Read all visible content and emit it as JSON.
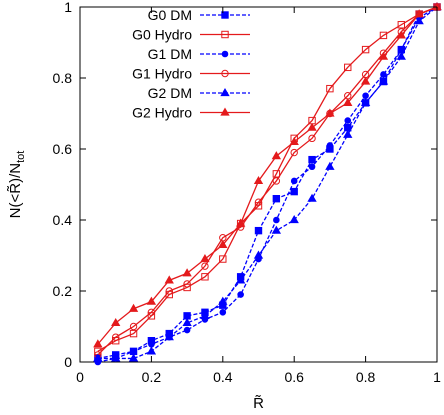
{
  "chart_data": {
    "type": "line",
    "title": "",
    "xlabel": "R̃",
    "ylabel_main": "N(<R̃)/N",
    "ylabel_sub": "tot",
    "xlim": [
      0,
      1
    ],
    "ylim": [
      0,
      1
    ],
    "xticks": [
      "0",
      "0.2",
      "0.4",
      "0.6",
      "0.8",
      "1"
    ],
    "yticks": [
      "0",
      "0.2",
      "0.4",
      "0.6",
      "0.8",
      "1"
    ],
    "xtick_values": [
      0,
      0.2,
      0.4,
      0.6,
      0.8,
      1
    ],
    "ytick_values": [
      0,
      0.2,
      0.4,
      0.6,
      0.8,
      1
    ],
    "grid": false,
    "legend_position": "top-left",
    "series": [
      {
        "name": "G0 DM",
        "color": "#0000ff",
        "dash": "dashed",
        "marker": "square-filled",
        "x": [
          0.05,
          0.1,
          0.15,
          0.2,
          0.25,
          0.3,
          0.35,
          0.4,
          0.45,
          0.5,
          0.55,
          0.6,
          0.65,
          0.7,
          0.75,
          0.8,
          0.85,
          0.9,
          0.95,
          1.0
        ],
        "y": [
          0.01,
          0.02,
          0.03,
          0.06,
          0.08,
          0.13,
          0.14,
          0.16,
          0.24,
          0.37,
          0.46,
          0.48,
          0.57,
          0.6,
          0.66,
          0.73,
          0.79,
          0.88,
          0.98,
          1.0
        ]
      },
      {
        "name": "G0 Hydro",
        "color": "#e41a1c",
        "dash": "solid",
        "marker": "square-open",
        "x": [
          0.05,
          0.1,
          0.15,
          0.2,
          0.25,
          0.3,
          0.35,
          0.4,
          0.45,
          0.5,
          0.55,
          0.6,
          0.65,
          0.7,
          0.75,
          0.8,
          0.85,
          0.9,
          0.95,
          1.0
        ],
        "y": [
          0.03,
          0.06,
          0.08,
          0.13,
          0.19,
          0.21,
          0.24,
          0.29,
          0.39,
          0.44,
          0.53,
          0.63,
          0.68,
          0.77,
          0.83,
          0.88,
          0.92,
          0.95,
          0.98,
          1.0
        ]
      },
      {
        "name": "G1 DM",
        "color": "#0000ff",
        "dash": "dashed",
        "marker": "circle-filled",
        "x": [
          0.05,
          0.1,
          0.15,
          0.2,
          0.25,
          0.3,
          0.35,
          0.4,
          0.45,
          0.5,
          0.55,
          0.6,
          0.65,
          0.7,
          0.75,
          0.8,
          0.85,
          0.9,
          0.95,
          1.0
        ],
        "y": [
          0.0,
          0.01,
          0.03,
          0.05,
          0.07,
          0.09,
          0.12,
          0.14,
          0.19,
          0.29,
          0.4,
          0.51,
          0.55,
          0.61,
          0.68,
          0.75,
          0.81,
          0.88,
          0.97,
          1.0
        ]
      },
      {
        "name": "G1 Hydro",
        "color": "#e41a1c",
        "dash": "solid",
        "marker": "circle-open",
        "x": [
          0.05,
          0.1,
          0.15,
          0.2,
          0.25,
          0.3,
          0.35,
          0.4,
          0.45,
          0.5,
          0.55,
          0.6,
          0.65,
          0.7,
          0.75,
          0.8,
          0.85,
          0.9,
          0.95,
          1.0
        ],
        "y": [
          0.02,
          0.07,
          0.1,
          0.14,
          0.2,
          0.22,
          0.27,
          0.35,
          0.38,
          0.45,
          0.51,
          0.59,
          0.63,
          0.7,
          0.75,
          0.81,
          0.87,
          0.93,
          0.98,
          1.0
        ]
      },
      {
        "name": "G2 DM",
        "color": "#0000ff",
        "dash": "dashed",
        "marker": "triangle-filled",
        "x": [
          0.05,
          0.1,
          0.15,
          0.2,
          0.25,
          0.3,
          0.35,
          0.4,
          0.45,
          0.5,
          0.55,
          0.6,
          0.65,
          0.7,
          0.75,
          0.8,
          0.85,
          0.9,
          0.95,
          1.0
        ],
        "y": [
          0.01,
          0.01,
          0.01,
          0.03,
          0.07,
          0.11,
          0.13,
          0.17,
          0.23,
          0.3,
          0.37,
          0.4,
          0.46,
          0.55,
          0.64,
          0.73,
          0.79,
          0.86,
          0.96,
          1.0
        ]
      },
      {
        "name": "G2 Hydro",
        "color": "#e41a1c",
        "dash": "solid",
        "marker": "triangle-filled",
        "x": [
          0.05,
          0.1,
          0.15,
          0.2,
          0.25,
          0.3,
          0.35,
          0.4,
          0.45,
          0.5,
          0.55,
          0.6,
          0.65,
          0.7,
          0.75,
          0.8,
          0.85,
          0.9,
          0.95,
          1.0
        ],
        "y": [
          0.05,
          0.11,
          0.15,
          0.17,
          0.23,
          0.25,
          0.29,
          0.33,
          0.39,
          0.51,
          0.58,
          0.62,
          0.66,
          0.7,
          0.73,
          0.79,
          0.86,
          0.92,
          0.98,
          1.0
        ]
      }
    ]
  }
}
